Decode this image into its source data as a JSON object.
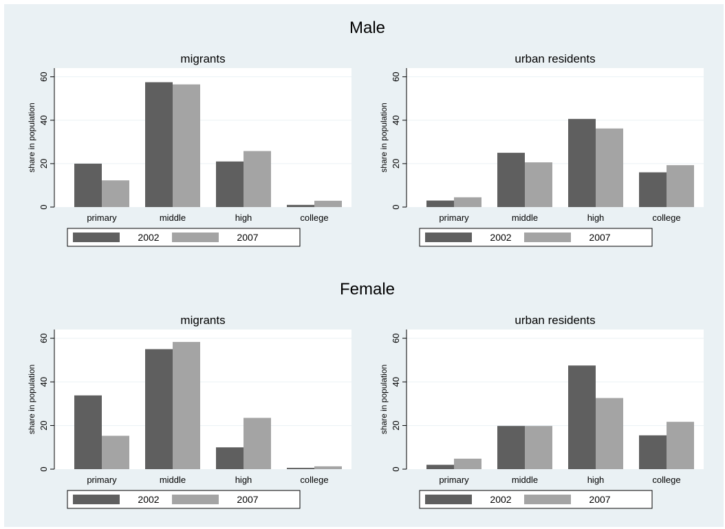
{
  "figure": {
    "sections": [
      {
        "title": "Male"
      },
      {
        "title": "Female"
      }
    ]
  },
  "colors": {
    "background": "#eaf1f4",
    "plot_area": "#ffffff",
    "gridline": "#eaf1f4",
    "series_2002": "#5f5f5f",
    "series_2007": "#a4a4a4"
  },
  "chart_data": [
    {
      "type": "bar",
      "section": "Male",
      "title": "migrants",
      "ylabel": "share in population",
      "xlabel": "",
      "categories": [
        "primary",
        "middle",
        "high",
        "college"
      ],
      "series": [
        {
          "name": "2002",
          "values": [
            20,
            57.5,
            21,
            1
          ]
        },
        {
          "name": "2007",
          "values": [
            12.3,
            56.5,
            25.8,
            2.9
          ]
        }
      ],
      "ylim": [
        0,
        64
      ],
      "yticks": [
        0,
        20,
        40,
        60
      ],
      "grid": true,
      "legend": "bottom"
    },
    {
      "type": "bar",
      "section": "Male",
      "title": "urban residents",
      "ylabel": "share in population",
      "xlabel": "",
      "categories": [
        "primary",
        "middle",
        "high",
        "college"
      ],
      "series": [
        {
          "name": "2002",
          "values": [
            3,
            25,
            40.6,
            16
          ]
        },
        {
          "name": "2007",
          "values": [
            4.5,
            20.6,
            36.2,
            19.3
          ]
        }
      ],
      "ylim": [
        0,
        64
      ],
      "yticks": [
        0,
        20,
        40,
        60
      ],
      "grid": true,
      "legend": "bottom"
    },
    {
      "type": "bar",
      "section": "Female",
      "title": "migrants",
      "ylabel": "share in population",
      "xlabel": "",
      "categories": [
        "primary",
        "middle",
        "high",
        "college"
      ],
      "series": [
        {
          "name": "2002",
          "values": [
            33.8,
            55,
            10,
            0.6
          ]
        },
        {
          "name": "2007",
          "values": [
            15.3,
            58.3,
            23.5,
            1.3
          ]
        }
      ],
      "ylim": [
        0,
        64
      ],
      "yticks": [
        0,
        20,
        40,
        60
      ],
      "grid": true,
      "legend": "bottom"
    },
    {
      "type": "bar",
      "section": "Female",
      "title": "urban residents",
      "ylabel": "share in population",
      "xlabel": "",
      "categories": [
        "primary",
        "middle",
        "high",
        "college"
      ],
      "series": [
        {
          "name": "2002",
          "values": [
            2,
            19.8,
            47.5,
            15.5
          ]
        },
        {
          "name": "2007",
          "values": [
            4.8,
            19.8,
            32.6,
            21.7
          ]
        }
      ],
      "ylim": [
        0,
        64
      ],
      "yticks": [
        0,
        20,
        40,
        60
      ],
      "grid": true,
      "legend": "bottom"
    }
  ]
}
